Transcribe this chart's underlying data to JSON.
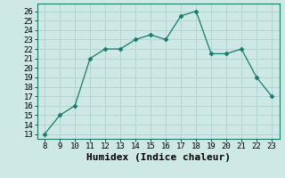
{
  "x": [
    8,
    9,
    10,
    11,
    12,
    13,
    14,
    15,
    16,
    17,
    18,
    19,
    20,
    21,
    22,
    23
  ],
  "y": [
    13,
    15,
    16,
    21,
    22,
    22,
    23,
    23.5,
    23,
    25.5,
    26,
    21.5,
    21.5,
    22,
    19,
    17
  ],
  "line_color": "#1a7a6e",
  "marker": "D",
  "marker_size": 2.5,
  "background_color": "#cde8e5",
  "grid_color": "#b0d5d2",
  "xlabel": "Humidex (Indice chaleur)",
  "xlabel_fontsize": 8,
  "xtick_labels": [
    "8",
    "9",
    "10",
    "11",
    "12",
    "13",
    "14",
    "15",
    "16",
    "17",
    "18",
    "19",
    "20",
    "21",
    "22",
    "23"
  ],
  "ytick_min": 13,
  "ytick_max": 26,
  "ytick_step": 1,
  "xlim": [
    7.5,
    23.5
  ],
  "ylim": [
    12.5,
    26.8
  ],
  "tick_fontsize": 6.5
}
